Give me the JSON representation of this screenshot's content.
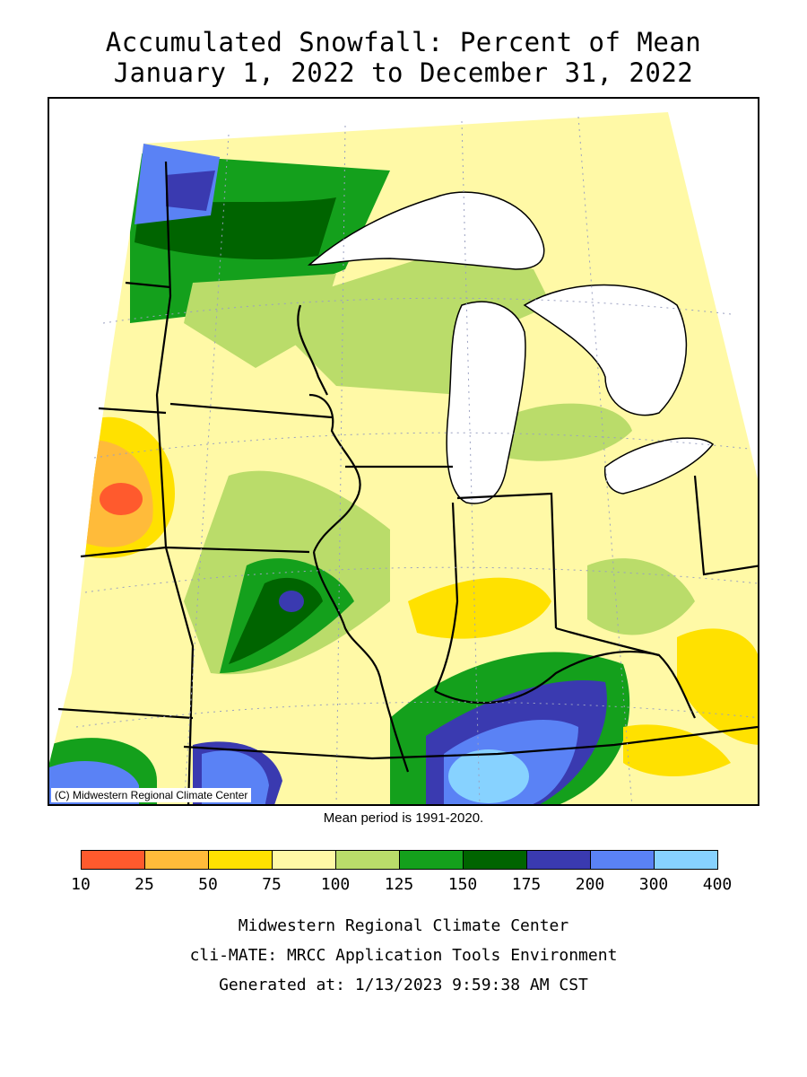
{
  "title": {
    "line1": "Accumulated Snowfall: Percent of Mean",
    "line2": "January 1, 2022 to December 31, 2022"
  },
  "map": {
    "copyright": "(C) Midwestern Regional Climate Center",
    "mean_period": "Mean period is 1991-2020.",
    "region": "Upper Midwest / Great Lakes"
  },
  "legend": {
    "colors": [
      "#ff5a2d",
      "#ffbb3a",
      "#ffe100",
      "#fff9a6",
      "#badc6a",
      "#14a01c",
      "#006400",
      "#3a3ab0",
      "#5a82f5",
      "#87d2ff"
    ],
    "labels": [
      "10",
      "25",
      "50",
      "75",
      "100",
      "125",
      "150",
      "175",
      "200",
      "300",
      "400"
    ]
  },
  "footer": {
    "line1": "Midwestern Regional Climate Center",
    "line2": "cli-MATE: MRCC Application Tools Environment",
    "line3": "Generated at: 1/13/2023 9:59:38 AM CST"
  }
}
